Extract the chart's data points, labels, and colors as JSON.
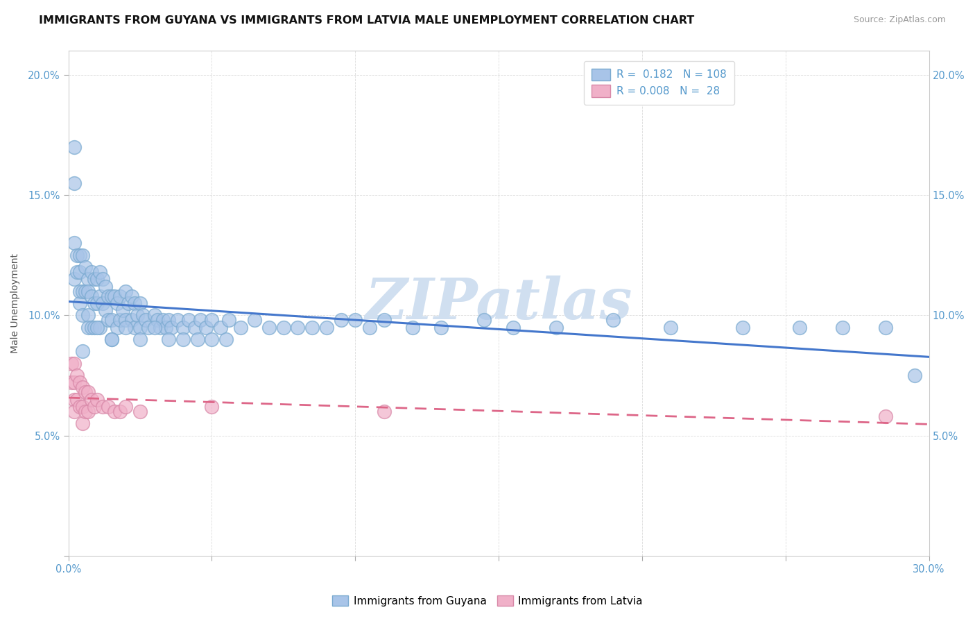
{
  "title": "IMMIGRANTS FROM GUYANA VS IMMIGRANTS FROM LATVIA MALE UNEMPLOYMENT CORRELATION CHART",
  "source_text": "Source: ZipAtlas.com",
  "ylabel": "Male Unemployment",
  "xlim": [
    0.0,
    0.3
  ],
  "ylim": [
    0.0,
    0.21
  ],
  "xticks": [
    0.0,
    0.05,
    0.1,
    0.15,
    0.2,
    0.25,
    0.3
  ],
  "yticks": [
    0.0,
    0.05,
    0.1,
    0.15,
    0.2
  ],
  "guyana_color": "#a8c4e8",
  "guyana_edge_color": "#7aaad0",
  "latvia_color": "#f0b0c8",
  "latvia_edge_color": "#d888a8",
  "guyana_line_color": "#4477cc",
  "latvia_line_color": "#dd6688",
  "background_color": "#ffffff",
  "watermark_text": "ZIPatlas",
  "watermark_color": "#d0dff0",
  "tick_color": "#5599cc",
  "title_fontsize": 11.5,
  "axis_label_fontsize": 10,
  "tick_fontsize": 10.5,
  "legend_fontsize": 11,
  "guyana_x": [
    0.002,
    0.002,
    0.002,
    0.002,
    0.003,
    0.003,
    0.004,
    0.004,
    0.004,
    0.004,
    0.005,
    0.005,
    0.005,
    0.006,
    0.006,
    0.007,
    0.007,
    0.007,
    0.007,
    0.008,
    0.008,
    0.008,
    0.009,
    0.009,
    0.009,
    0.01,
    0.01,
    0.011,
    0.011,
    0.011,
    0.012,
    0.012,
    0.013,
    0.013,
    0.014,
    0.014,
    0.015,
    0.015,
    0.015,
    0.016,
    0.017,
    0.017,
    0.018,
    0.018,
    0.019,
    0.02,
    0.02,
    0.021,
    0.022,
    0.022,
    0.023,
    0.023,
    0.024,
    0.025,
    0.025,
    0.026,
    0.027,
    0.028,
    0.03,
    0.031,
    0.032,
    0.033,
    0.034,
    0.035,
    0.036,
    0.038,
    0.04,
    0.042,
    0.044,
    0.046,
    0.048,
    0.05,
    0.053,
    0.056,
    0.06,
    0.065,
    0.07,
    0.075,
    0.08,
    0.085,
    0.09,
    0.095,
    0.1,
    0.105,
    0.11,
    0.12,
    0.13,
    0.145,
    0.155,
    0.17,
    0.19,
    0.21,
    0.235,
    0.255,
    0.27,
    0.285,
    0.295,
    0.005,
    0.01,
    0.015,
    0.02,
    0.025,
    0.03,
    0.035,
    0.04,
    0.045,
    0.05,
    0.055
  ],
  "guyana_y": [
    0.17,
    0.155,
    0.13,
    0.115,
    0.125,
    0.118,
    0.125,
    0.118,
    0.11,
    0.105,
    0.125,
    0.11,
    0.1,
    0.12,
    0.11,
    0.115,
    0.11,
    0.1,
    0.095,
    0.118,
    0.108,
    0.095,
    0.115,
    0.105,
    0.095,
    0.115,
    0.105,
    0.118,
    0.108,
    0.095,
    0.115,
    0.105,
    0.112,
    0.102,
    0.108,
    0.098,
    0.108,
    0.098,
    0.09,
    0.108,
    0.105,
    0.095,
    0.108,
    0.098,
    0.102,
    0.11,
    0.098,
    0.105,
    0.108,
    0.098,
    0.105,
    0.095,
    0.1,
    0.105,
    0.095,
    0.1,
    0.098,
    0.095,
    0.1,
    0.098,
    0.095,
    0.098,
    0.095,
    0.098,
    0.095,
    0.098,
    0.095,
    0.098,
    0.095,
    0.098,
    0.095,
    0.098,
    0.095,
    0.098,
    0.095,
    0.098,
    0.095,
    0.095,
    0.095,
    0.095,
    0.095,
    0.098,
    0.098,
    0.095,
    0.098,
    0.095,
    0.095,
    0.098,
    0.095,
    0.095,
    0.098,
    0.095,
    0.095,
    0.095,
    0.095,
    0.095,
    0.075,
    0.085,
    0.095,
    0.09,
    0.095,
    0.09,
    0.095,
    0.09,
    0.09,
    0.09,
    0.09,
    0.09
  ],
  "latvia_x": [
    0.001,
    0.001,
    0.002,
    0.002,
    0.002,
    0.002,
    0.003,
    0.003,
    0.004,
    0.004,
    0.005,
    0.005,
    0.005,
    0.006,
    0.006,
    0.007,
    0.007,
    0.008,
    0.009,
    0.01,
    0.012,
    0.014,
    0.016,
    0.018,
    0.02,
    0.025,
    0.05,
    0.11,
    0.285
  ],
  "latvia_y": [
    0.08,
    0.072,
    0.08,
    0.072,
    0.065,
    0.06,
    0.075,
    0.065,
    0.072,
    0.062,
    0.07,
    0.062,
    0.055,
    0.068,
    0.06,
    0.068,
    0.06,
    0.065,
    0.062,
    0.065,
    0.062,
    0.062,
    0.06,
    0.06,
    0.062,
    0.06,
    0.062,
    0.06,
    0.058
  ]
}
